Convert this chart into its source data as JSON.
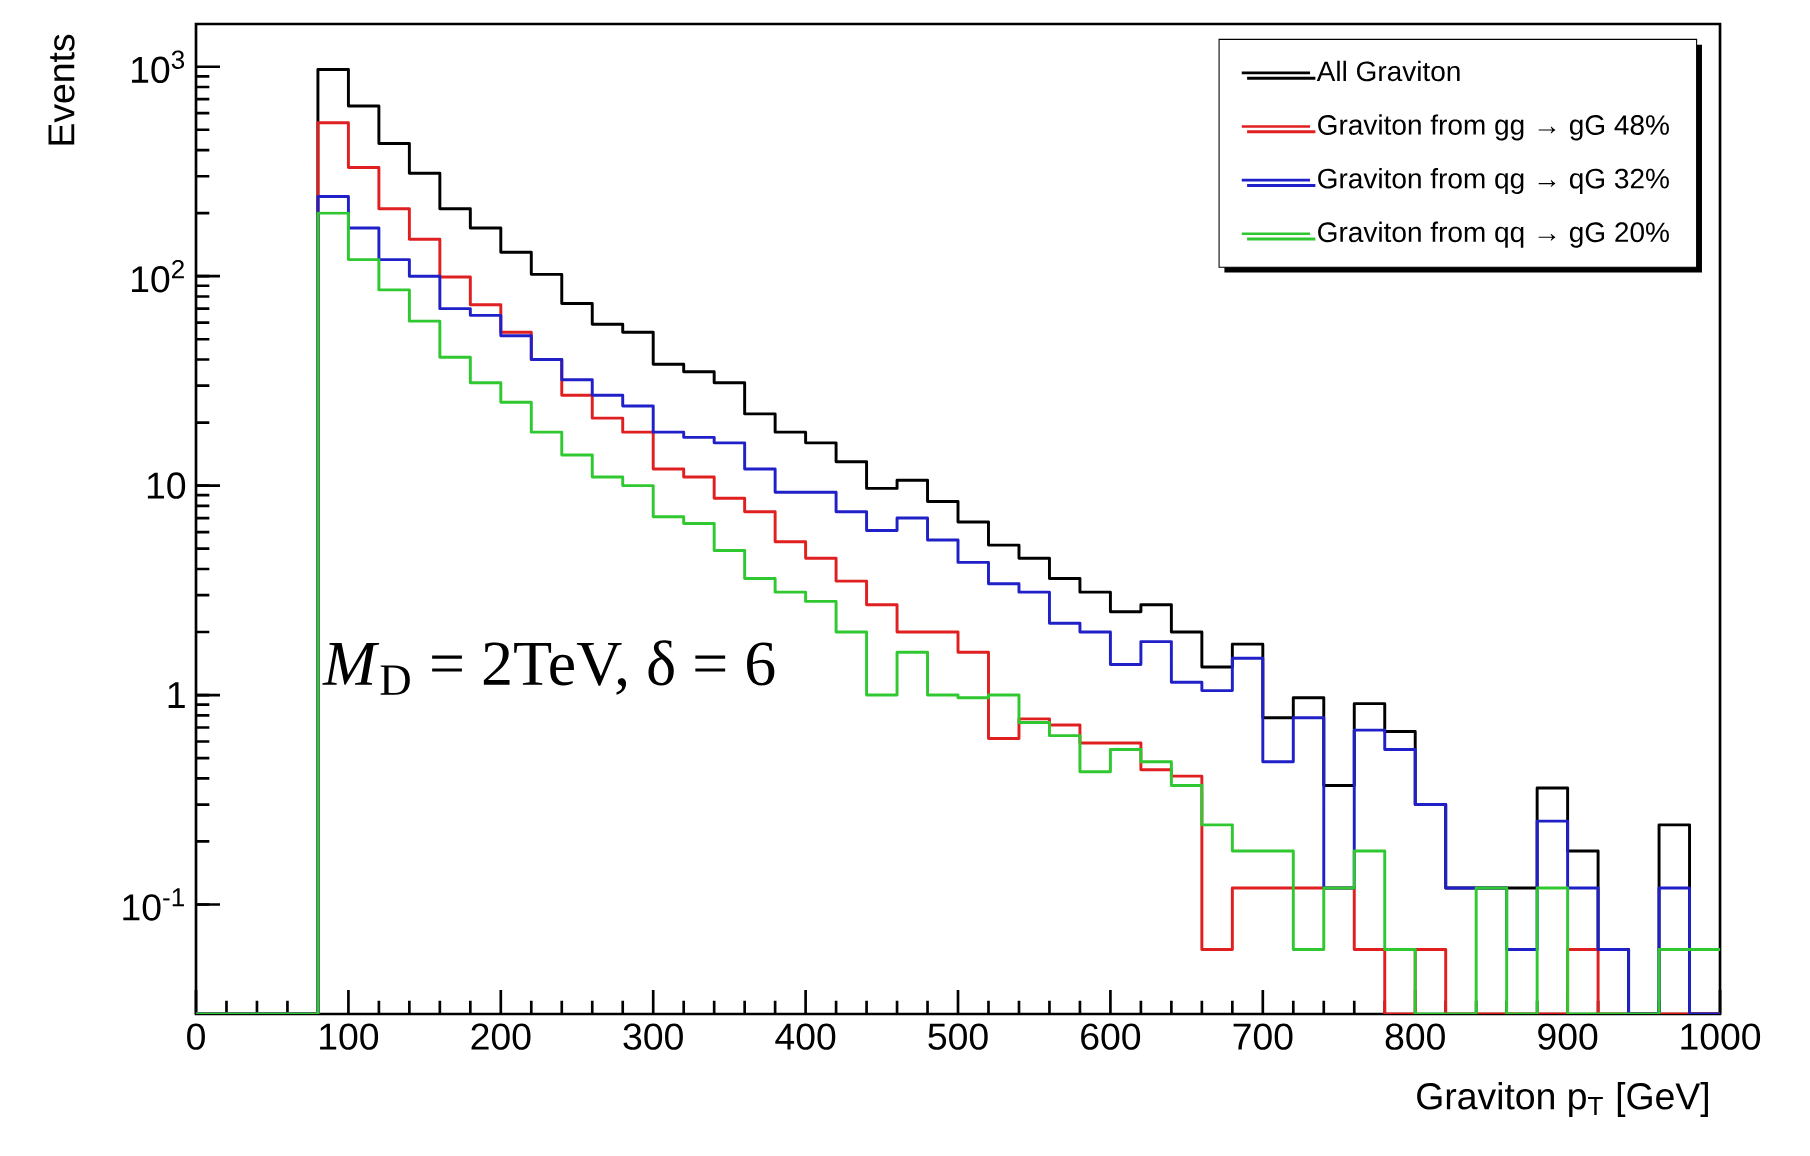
{
  "chart_data": {
    "type": "histogram",
    "xlabel": "Graviton p$_{T}$ [GeV]",
    "ylabel": "Events",
    "bins": [
      0,
      20,
      40,
      60,
      80,
      100,
      120,
      140,
      160,
      180,
      200,
      220,
      240,
      260,
      280,
      300,
      320,
      340,
      360,
      380,
      400,
      420,
      440,
      460,
      480,
      500,
      520,
      540,
      560,
      580,
      600,
      620,
      640,
      660,
      680,
      700,
      720,
      740,
      760,
      780,
      800,
      820,
      840,
      860,
      880,
      900,
      920,
      940,
      960,
      980,
      1000
    ],
    "series": [
      {
        "name": "All Graviton",
        "color": "#000000",
        "values": [
          null,
          null,
          null,
          null,
          970,
          650,
          430,
          310,
          210,
          170,
          130,
          102,
          74,
          59,
          54,
          38,
          35,
          31,
          22,
          18,
          16,
          13,
          9.7,
          10.6,
          8.4,
          6.7,
          5.2,
          4.5,
          3.6,
          3.1,
          2.5,
          2.7,
          2.0,
          1.36,
          1.75,
          0.78,
          0.97,
          0.37,
          0.91,
          0.67,
          0.3,
          0.12,
          0.12,
          0.12,
          0.36,
          0.18,
          0.061,
          null,
          0.24,
          null
        ]
      },
      {
        "name": "Graviton from  gg → gG 48%",
        "color": "#e02020",
        "values": [
          null,
          null,
          null,
          null,
          540,
          330,
          210,
          150,
          99,
          73,
          54,
          40,
          27,
          21,
          18,
          12,
          11,
          8.7,
          7.5,
          5.4,
          4.5,
          3.5,
          2.7,
          2.0,
          2.0,
          1.6,
          0.62,
          0.77,
          0.72,
          0.59,
          0.59,
          0.44,
          0.41,
          0.061,
          0.12,
          0.12,
          0.12,
          0.12,
          0.061,
          null,
          0.061,
          null,
          null,
          null,
          null,
          0.061,
          null,
          null,
          null,
          null
        ]
      },
      {
        "name": "Graviton from  qg → qG 32%",
        "color": "#2020c8",
        "values": [
          null,
          null,
          null,
          null,
          240,
          170,
          120,
          100,
          70,
          65,
          52,
          40,
          32,
          27,
          24,
          18,
          17,
          16,
          12,
          9.3,
          9.3,
          7.5,
          6.1,
          7.0,
          5.5,
          4.3,
          3.4,
          3.1,
          2.2,
          2.0,
          1.4,
          1.8,
          1.15,
          1.05,
          1.5,
          0.48,
          0.78,
          0.12,
          0.68,
          0.55,
          0.3,
          0.12,
          0.12,
          0.061,
          0.25,
          0.12,
          0.061,
          null,
          0.12,
          null
        ]
      },
      {
        "name": "Graviton from  qq → gG 20%",
        "color": "#30c830",
        "values": [
          null,
          null,
          null,
          null,
          200,
          120,
          86,
          61,
          41,
          31,
          25,
          18,
          14,
          11,
          10,
          7.1,
          6.6,
          4.9,
          3.6,
          3.1,
          2.8,
          2.0,
          1.0,
          1.6,
          1.0,
          0.97,
          1.0,
          0.74,
          0.64,
          0.43,
          0.55,
          0.48,
          0.37,
          0.24,
          0.18,
          0.18,
          0.061,
          0.12,
          0.18,
          0.061,
          null,
          null,
          0.12,
          null,
          0.12,
          null,
          null,
          null,
          0.061,
          0.061
        ]
      }
    ],
    "xlim": [
      0,
      1000
    ],
    "xticks": [
      0,
      100,
      200,
      300,
      400,
      500,
      600,
      700,
      800,
      900,
      1000
    ],
    "ylim": [
      0.03,
      1600
    ],
    "log": "y",
    "yticks": [
      {
        "value": 0.1,
        "label": "10$^{-1}$"
      },
      1,
      10,
      {
        "value": 100,
        "label": "10$^{2}$"
      },
      {
        "value": 1000,
        "label": "10$^{3}$"
      }
    ],
    "legend": "top right",
    "marker": "none",
    "line_style": "solid",
    "grid": false,
    "annotations": [
      "*M*$_{D}$ = 2TeV, δ = 6"
    ]
  }
}
